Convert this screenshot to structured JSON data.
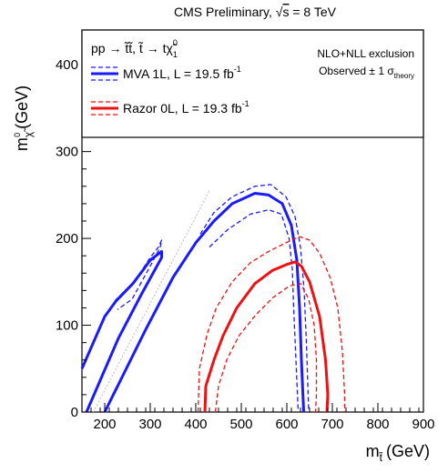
{
  "chart_data": {
    "type": "line",
    "title": "CMS Preliminary, √s = 8 TeV",
    "title_parts": {
      "prefix": "CMS Preliminary, ",
      "sqrt": "√",
      "s": "s",
      "suffix": " = 8 TeV"
    },
    "xlabel": "m(GeV)",
    "xlabel_parts": {
      "m": "m",
      "sub": "t̃",
      "unit": "(GeV)"
    },
    "ylabel": "m(GeV)",
    "ylabel_parts": {
      "m": "m",
      "sub": "χ̃",
      "sup": "0",
      "unit": "(GeV)"
    },
    "xlim": [
      150,
      900
    ],
    "ylim": [
      0,
      440
    ],
    "xticks": [
      200,
      300,
      400,
      500,
      600,
      700,
      800,
      900
    ],
    "yticks": [
      0,
      100,
      200,
      300,
      400
    ],
    "grid": false,
    "legend": {
      "placement": "top",
      "process": "pp → t̃t̃, t̃ → tχ̃",
      "process_sup": "0",
      "process_sub": "1",
      "exclusion": "NLO+NLL exclusion",
      "observed_prefix": "Observed ± 1 σ",
      "observed_sub": "theory",
      "entries": [
        {
          "label": "MVA 1L, L = 19.5 fb",
          "sup": "-1",
          "color": "#1a1aff"
        },
        {
          "label": "Razor 0L, L = 19.3 fb",
          "sup": "-1",
          "color": "#ee1111"
        }
      ]
    },
    "diagonal": {
      "color": "#bbbbbb",
      "points": [
        [
          175,
          0
        ],
        [
          265,
          90
        ],
        [
          345,
          170
        ],
        [
          430,
          255
        ]
      ]
    },
    "series": [
      {
        "name": "MVA 1L, L = 19.5 fb-1",
        "color": "#1a1aff",
        "style": "solid",
        "width": 3,
        "points": [
          [
            150,
            50
          ],
          [
            200,
            110
          ],
          [
            225,
            128
          ],
          [
            262,
            148
          ],
          [
            282,
            162
          ],
          [
            300,
            175
          ],
          [
            325,
            185
          ],
          [
            325,
            178
          ],
          [
            280,
            135
          ],
          [
            230,
            85
          ],
          [
            160,
            0
          ]
        ]
      },
      {
        "name": "",
        "color": "#1a1aff",
        "style": "solid",
        "width": 3,
        "points": [
          [
            200,
            0
          ],
          [
            290,
            95
          ],
          [
            350,
            155
          ],
          [
            400,
            195
          ],
          [
            440,
            220
          ],
          [
            480,
            240
          ],
          [
            530,
            252
          ],
          [
            560,
            250
          ],
          [
            590,
            240
          ],
          [
            610,
            215
          ],
          [
            622,
            175
          ],
          [
            628,
            120
          ],
          [
            632,
            60
          ],
          [
            637,
            0
          ]
        ]
      },
      {
        "name": "",
        "color": "#1a1aff",
        "style": "dashed",
        "width": 1.3,
        "points": [
          [
            222,
            128
          ],
          [
            260,
            148
          ],
          [
            280,
            162
          ],
          [
            300,
            178
          ],
          [
            318,
            190
          ],
          [
            325,
            198
          ],
          [
            322,
            190
          ],
          [
            300,
            168
          ],
          [
            260,
            130
          ],
          [
            228,
            118
          ]
        ]
      },
      {
        "name": "",
        "color": "#1a1aff",
        "style": "dashed",
        "width": 1.3,
        "points": [
          [
            410,
            205
          ],
          [
            440,
            230
          ],
          [
            480,
            248
          ],
          [
            530,
            260
          ],
          [
            565,
            262
          ],
          [
            598,
            248
          ],
          [
            618,
            225
          ],
          [
            630,
            190
          ],
          [
            638,
            140
          ],
          [
            643,
            80
          ],
          [
            648,
            0
          ]
        ]
      },
      {
        "name": "",
        "color": "#1a1aff",
        "style": "dashed",
        "width": 1.3,
        "points": [
          [
            430,
            190
          ],
          [
            470,
            210
          ],
          [
            520,
            228
          ],
          [
            560,
            233
          ],
          [
            588,
            228
          ],
          [
            605,
            200
          ],
          [
            612,
            165
          ],
          [
            615,
            120
          ],
          [
            620,
            60
          ],
          [
            625,
            0
          ]
        ]
      },
      {
        "name": "Razor 0L, L = 19.3 fb-1",
        "color": "#ee1111",
        "style": "solid",
        "width": 3,
        "points": [
          [
            420,
            0
          ],
          [
            422,
            30
          ],
          [
            440,
            60
          ],
          [
            460,
            88
          ],
          [
            490,
            120
          ],
          [
            530,
            148
          ],
          [
            568,
            163
          ],
          [
            600,
            170
          ],
          [
            618,
            173
          ],
          [
            632,
            168
          ],
          [
            650,
            150
          ],
          [
            672,
            110
          ],
          [
            685,
            60
          ],
          [
            690,
            20
          ],
          [
            688,
            0
          ]
        ]
      },
      {
        "name": "",
        "color": "#ee1111",
        "style": "dashed",
        "width": 1.3,
        "points": [
          [
            405,
            0
          ],
          [
            408,
            50
          ],
          [
            425,
            90
          ],
          [
            445,
            120
          ],
          [
            480,
            150
          ],
          [
            520,
            172
          ],
          [
            560,
            185
          ],
          [
            598,
            195
          ],
          [
            628,
            202
          ],
          [
            650,
            198
          ],
          [
            672,
            183
          ],
          [
            695,
            155
          ],
          [
            712,
            120
          ],
          [
            722,
            70
          ],
          [
            727,
            20
          ],
          [
            727,
            0
          ]
        ]
      },
      {
        "name": "",
        "color": "#ee1111",
        "style": "dashed",
        "width": 1.3,
        "points": [
          [
            443,
            0
          ],
          [
            450,
            30
          ],
          [
            468,
            60
          ],
          [
            495,
            88
          ],
          [
            532,
            112
          ],
          [
            570,
            132
          ],
          [
            605,
            145
          ],
          [
            630,
            148
          ],
          [
            648,
            130
          ],
          [
            660,
            100
          ],
          [
            665,
            60
          ],
          [
            665,
            20
          ],
          [
            663,
            0
          ]
        ]
      }
    ]
  }
}
